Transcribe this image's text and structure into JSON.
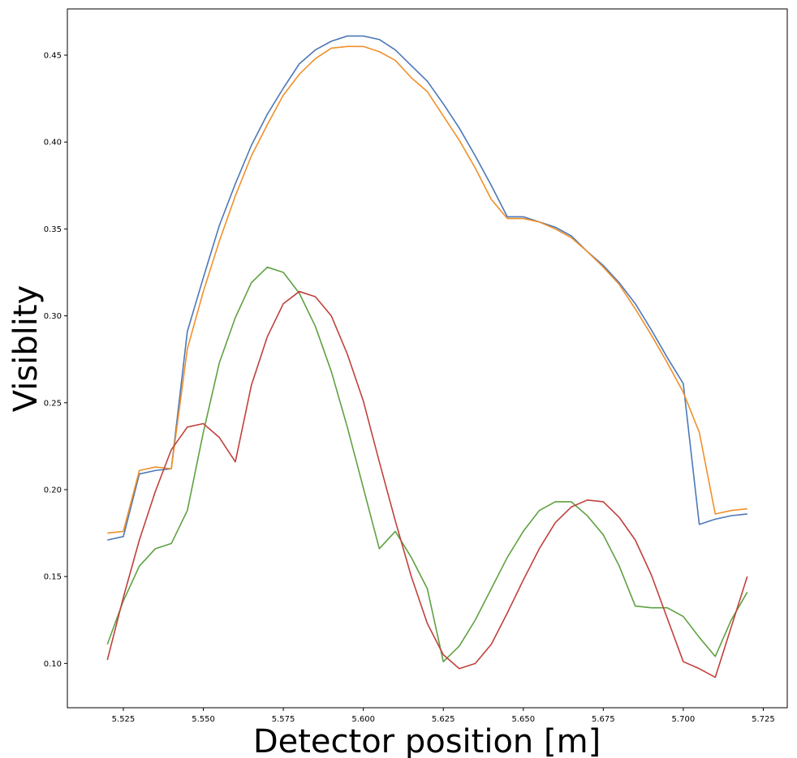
{
  "chart_data": {
    "type": "line",
    "title": "",
    "xlabel": "Detector position [m]",
    "ylabel": "Visiblity",
    "xlim": [
      5.5075,
      5.7325
    ],
    "ylim": [
      0.0745,
      0.4766
    ],
    "grid": false,
    "x_ticks": [
      5.525,
      5.55,
      5.575,
      5.6,
      5.625,
      5.65,
      5.675,
      5.7,
      5.725
    ],
    "x_tick_labels": [
      "5.525",
      "5.550",
      "5.575",
      "5.600",
      "5.625",
      "5.650",
      "5.675",
      "5.700",
      "5.725"
    ],
    "y_ticks": [
      0.1,
      0.15,
      0.2,
      0.25,
      0.3,
      0.35,
      0.4,
      0.45
    ],
    "y_tick_labels": [
      "0.10",
      "0.15",
      "0.20",
      "0.25",
      "0.30",
      "0.35",
      "0.40",
      "0.45"
    ],
    "x": [
      5.52,
      5.525,
      5.53,
      5.535,
      5.54,
      5.545,
      5.55,
      5.555,
      5.56,
      5.565,
      5.57,
      5.575,
      5.58,
      5.585,
      5.59,
      5.595,
      5.6,
      5.605,
      5.61,
      5.615,
      5.62,
      5.625,
      5.63,
      5.635,
      5.64,
      5.645,
      5.65,
      5.655,
      5.66,
      5.665,
      5.67,
      5.675,
      5.68,
      5.685,
      5.69,
      5.695,
      5.7,
      5.705,
      5.71,
      5.715,
      5.72
    ],
    "series": [
      {
        "color": "#4c78b8",
        "values": [
          0.171,
          0.173,
          0.209,
          0.211,
          0.212,
          0.291,
          0.322,
          0.352,
          0.376,
          0.398,
          0.416,
          0.431,
          0.445,
          0.453,
          0.458,
          0.461,
          0.461,
          0.459,
          0.453,
          0.444,
          0.435,
          0.422,
          0.408,
          0.392,
          0.375,
          0.357,
          0.357,
          0.354,
          0.351,
          0.346,
          0.337,
          0.329,
          0.319,
          0.307,
          0.292,
          0.276,
          0.261,
          0.18,
          0.183,
          0.185,
          0.186
        ]
      },
      {
        "color": "#f0902a",
        "values": [
          0.175,
          0.176,
          0.211,
          0.213,
          0.212,
          0.281,
          0.314,
          0.343,
          0.369,
          0.392,
          0.41,
          0.427,
          0.439,
          0.448,
          0.454,
          0.455,
          0.455,
          0.452,
          0.447,
          0.437,
          0.429,
          0.415,
          0.401,
          0.385,
          0.367,
          0.356,
          0.356,
          0.354,
          0.35,
          0.345,
          0.337,
          0.328,
          0.318,
          0.304,
          0.289,
          0.273,
          0.256,
          0.233,
          0.186,
          0.188,
          0.189
        ]
      },
      {
        "color": "#5fa141",
        "values": [
          0.111,
          0.136,
          0.156,
          0.166,
          0.169,
          0.188,
          0.233,
          0.273,
          0.299,
          0.319,
          0.328,
          0.325,
          0.313,
          0.294,
          0.268,
          0.236,
          0.201,
          0.166,
          0.176,
          0.161,
          0.143,
          0.101,
          0.11,
          0.125,
          0.143,
          0.161,
          0.176,
          0.188,
          0.193,
          0.193,
          0.185,
          0.174,
          0.156,
          0.133,
          0.132,
          0.132,
          0.127,
          0.115,
          0.104,
          0.125,
          0.141
        ]
      },
      {
        "color": "#c0413c",
        "values": [
          0.102,
          0.138,
          0.171,
          0.199,
          0.223,
          0.236,
          0.238,
          0.23,
          0.216,
          0.26,
          0.288,
          0.307,
          0.314,
          0.311,
          0.3,
          0.278,
          0.251,
          0.216,
          0.182,
          0.15,
          0.123,
          0.105,
          0.097,
          0.1,
          0.111,
          0.129,
          0.148,
          0.166,
          0.181,
          0.19,
          0.194,
          0.193,
          0.184,
          0.171,
          0.151,
          0.126,
          0.101,
          0.097,
          0.092,
          0.121,
          0.15
        ]
      }
    ]
  }
}
